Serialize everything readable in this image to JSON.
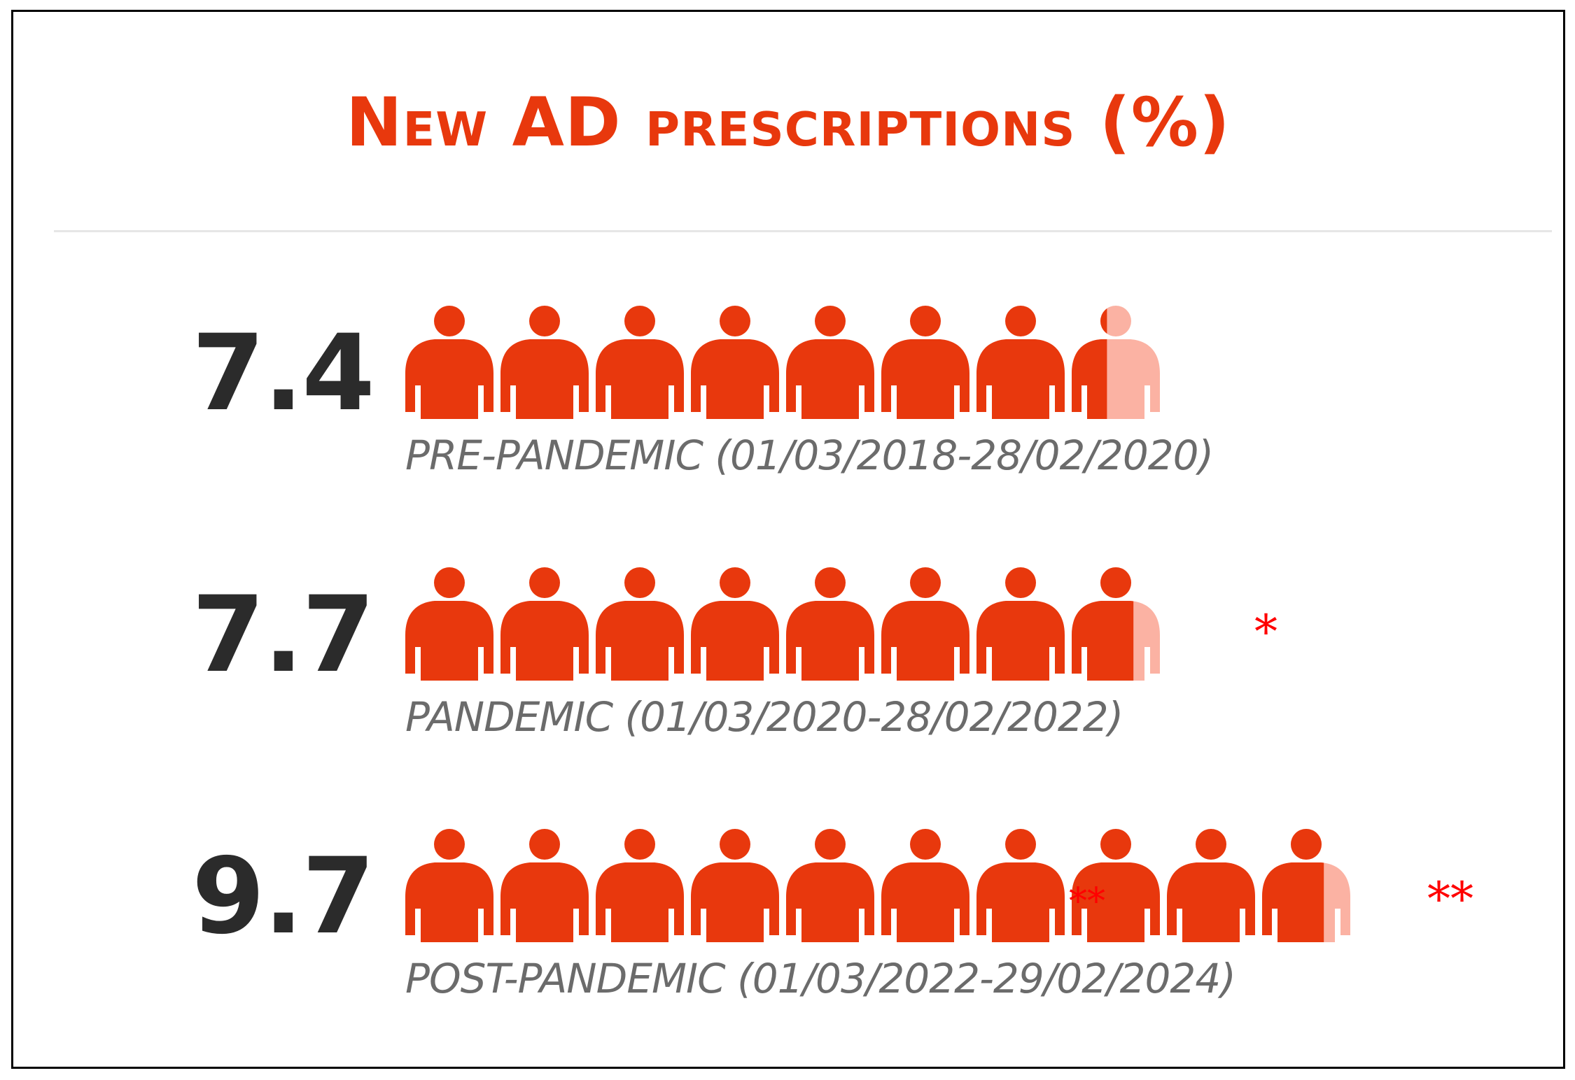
{
  "title": "New AD prescriptions (%)",
  "colors": {
    "accent": "#e8380d",
    "faded": "#fbb2a3",
    "value_text": "#2b2b2b",
    "label_text": "#6b6b6b",
    "marker": "#ff0000"
  },
  "chart_data": {
    "type": "pictogram",
    "title": "New AD prescriptions (%)",
    "unit": "%",
    "icon": "person-icon",
    "rows": [
      {
        "value": 7.4,
        "label": "PRE-PANDEMIC (01/03/2018-28/02/2020)",
        "marker": ""
      },
      {
        "value": 7.7,
        "label": "PANDEMIC (01/03/2020-28/02/2022)",
        "marker": "*"
      },
      {
        "value": 9.7,
        "label": "POST-PANDEMIC (01/03/2022-29/02/2024)",
        "marker": "**"
      }
    ],
    "overlay_marker": "**"
  }
}
